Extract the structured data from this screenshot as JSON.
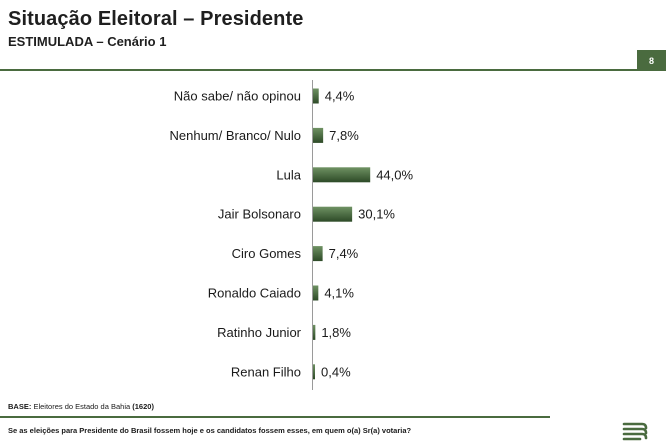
{
  "header": {
    "title": "Situação Eleitoral – Presidente",
    "subtitle": "ESTIMULADA – Cenário 1",
    "page_number": "8"
  },
  "footer": {
    "base_label": "BASE:",
    "base_text": "Eleitores do Estado da Bahia",
    "base_count": "(1620)",
    "question": "Se as eleições para Presidente do Brasil fossem hoje e os candidatos fossem esses, em quem o(a) Sr(a) votaria?"
  },
  "colors": {
    "accent": "#4a6b3f",
    "bar_light": "#6f9263",
    "bar_dark": "#2d4a27"
  },
  "logo": {
    "name": "stripes-logo-icon"
  },
  "chart_data": {
    "type": "bar",
    "orientation": "horizontal",
    "categories": [
      "Não sabe/ não opinou",
      "Nenhum/ Branco/ Nulo",
      "Lula",
      "Jair Bolsonaro",
      "Ciro Gomes",
      "Ronaldo Caiado",
      "Ratinho Junior",
      "Renan Filho"
    ],
    "values": [
      4.4,
      7.8,
      44.0,
      30.1,
      7.4,
      4.1,
      1.8,
      0.4
    ],
    "value_labels": [
      "4,4%",
      "7,8%",
      "44,0%",
      "30,1%",
      "7,4%",
      "4,1%",
      "1,8%",
      "0,4%"
    ],
    "unit": "%",
    "title": "",
    "xlabel": "",
    "ylabel": "",
    "grid": false,
    "legend": "none"
  }
}
